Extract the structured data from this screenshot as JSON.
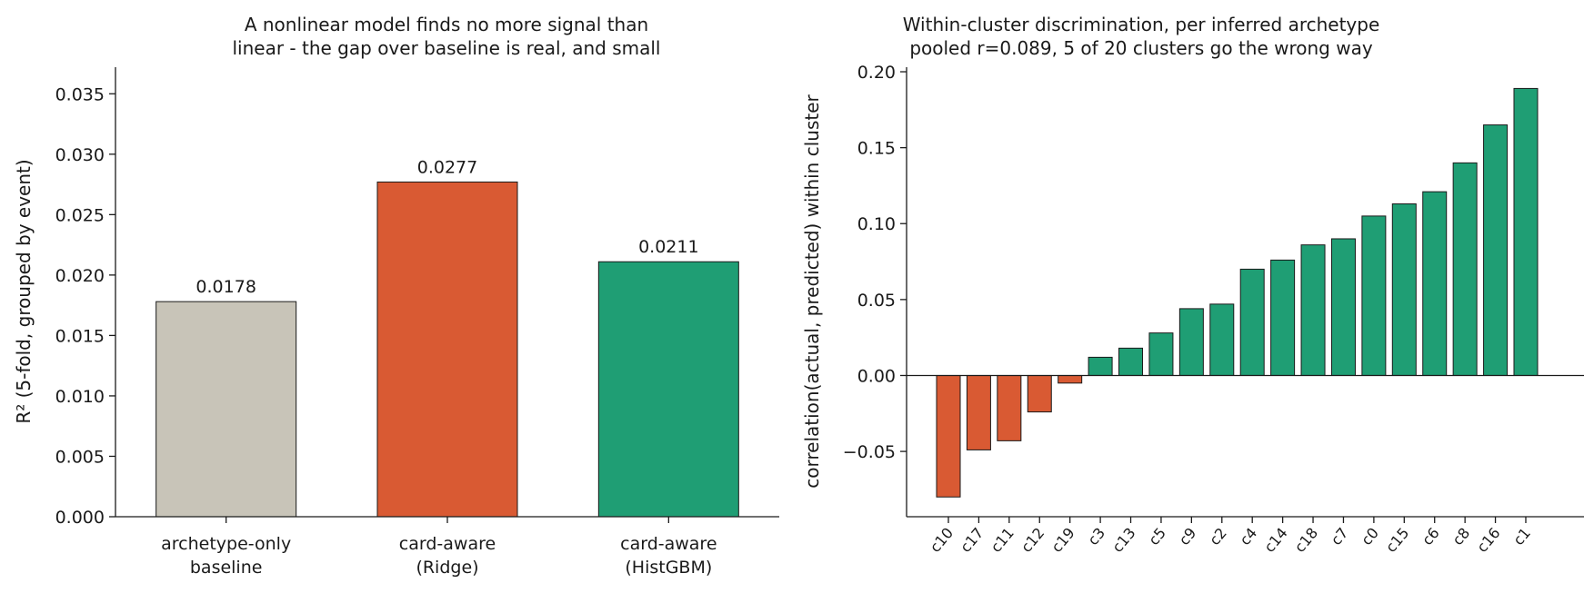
{
  "chart_data": [
    {
      "type": "bar",
      "title": "A nonlinear model finds no more signal than\nlinear - the gap over baseline is real, and small",
      "xlabel": "",
      "ylabel": "R² (5-fold, grouped by event)",
      "ylim": [
        0,
        0.0372
      ],
      "yticks": [
        "0.000",
        "0.005",
        "0.010",
        "0.015",
        "0.020",
        "0.025",
        "0.030",
        "0.035"
      ],
      "categories": [
        "archetype-only\nbaseline",
        "card-aware\n(Ridge)",
        "card-aware\n(HistGBM)"
      ],
      "values": [
        0.0178,
        0.0277,
        0.0211
      ],
      "value_labels": [
        "0.0178",
        "0.0277",
        "0.0211"
      ],
      "colors": [
        "#c8c4b8",
        "#d95a33",
        "#1f9e74"
      ],
      "grid": false
    },
    {
      "type": "bar",
      "title": "Within-cluster discrimination, per inferred archetype\npooled r=0.089, 5 of 20 clusters go the wrong way",
      "xlabel": "",
      "ylabel": "correlation(actual, predicted) within cluster",
      "ylim": [
        -0.093,
        0.203
      ],
      "yticks": [
        "−0.05",
        "0.00",
        "0.05",
        "0.10",
        "0.15",
        "0.20"
      ],
      "categories": [
        "c10",
        "c17",
        "c11",
        "c12",
        "c19",
        "c3",
        "c13",
        "c5",
        "c9",
        "c2",
        "c4",
        "c14",
        "c18",
        "c7",
        "c0",
        "c15",
        "c6",
        "c8",
        "c16",
        "c1"
      ],
      "values": [
        -0.08,
        -0.049,
        -0.043,
        -0.024,
        -0.005,
        0.012,
        0.018,
        0.028,
        0.044,
        0.047,
        0.07,
        0.076,
        0.086,
        0.09,
        0.105,
        0.113,
        0.121,
        0.14,
        0.165,
        0.189
      ],
      "colors": {
        "negative": "#d95a33",
        "positive": "#1f9e74"
      },
      "zero_line": true,
      "grid": false
    }
  ]
}
